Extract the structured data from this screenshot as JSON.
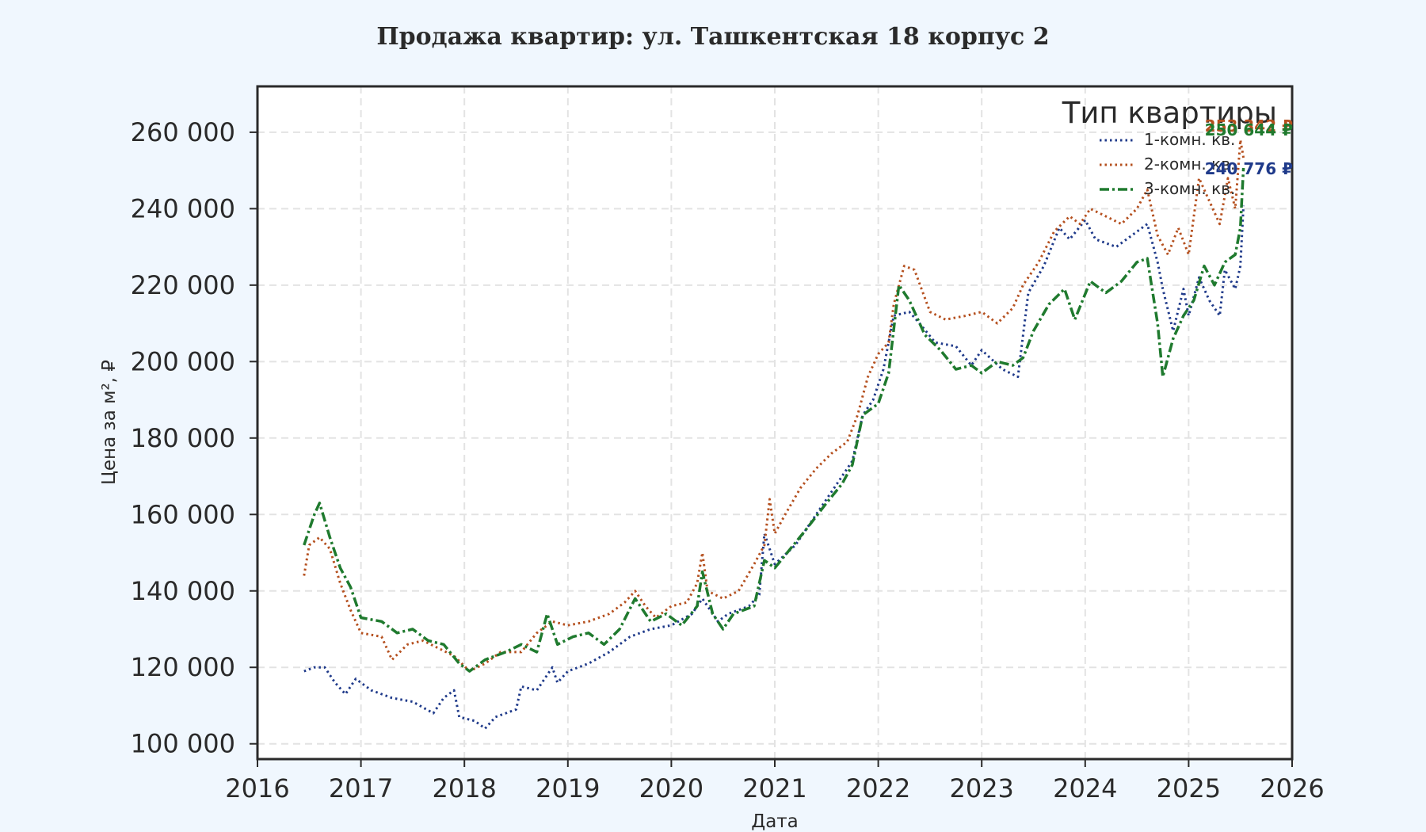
{
  "chart_data": {
    "type": "line",
    "title": "Продажа квартир: ул. Ташкентская 18 корпус 2",
    "xlabel": "Дата",
    "ylabel": "Цена за м², ₽",
    "xlim": [
      2016,
      2026
    ],
    "ylim": [
      96000,
      272000
    ],
    "x_ticks": [
      2016,
      2017,
      2018,
      2019,
      2020,
      2021,
      2022,
      2023,
      2024,
      2025,
      2026
    ],
    "y_ticks": [
      100000,
      120000,
      140000,
      160000,
      180000,
      200000,
      220000,
      240000,
      260000
    ],
    "y_tick_labels": [
      "100 000",
      "120 000",
      "140 000",
      "160 000",
      "180 000",
      "200 000",
      "220 000",
      "240 000",
      "260 000"
    ],
    "grid": true,
    "legend": {
      "title": "Тип квартиры",
      "placement": "top-right"
    },
    "series": [
      {
        "name": "1-комн. кв.",
        "color": "#1f3a8a",
        "linestyle": "dotted",
        "end_label": "240 776 ₽",
        "points": [
          [
            2016.45,
            119000
          ],
          [
            2016.55,
            120000
          ],
          [
            2016.65,
            120000
          ],
          [
            2016.75,
            116000
          ],
          [
            2016.85,
            113000
          ],
          [
            2016.95,
            117000
          ],
          [
            2017.1,
            114000
          ],
          [
            2017.3,
            112000
          ],
          [
            2017.5,
            111000
          ],
          [
            2017.7,
            108000
          ],
          [
            2017.8,
            112000
          ],
          [
            2017.9,
            114000
          ],
          [
            2017.95,
            107000
          ],
          [
            2018.1,
            106000
          ],
          [
            2018.2,
            104000
          ],
          [
            2018.3,
            107000
          ],
          [
            2018.4,
            108000
          ],
          [
            2018.5,
            109000
          ],
          [
            2018.55,
            115000
          ],
          [
            2018.7,
            114000
          ],
          [
            2018.85,
            120000
          ],
          [
            2018.9,
            116000
          ],
          [
            2019.0,
            119000
          ],
          [
            2019.2,
            121000
          ],
          [
            2019.4,
            124000
          ],
          [
            2019.6,
            128000
          ],
          [
            2019.8,
            130000
          ],
          [
            2020.0,
            131000
          ],
          [
            2020.2,
            134000
          ],
          [
            2020.3,
            138000
          ],
          [
            2020.45,
            132000
          ],
          [
            2020.55,
            134000
          ],
          [
            2020.75,
            136000
          ],
          [
            2020.85,
            139000
          ],
          [
            2020.9,
            155000
          ],
          [
            2021.0,
            147000
          ],
          [
            2021.2,
            152000
          ],
          [
            2021.4,
            160000
          ],
          [
            2021.6,
            168000
          ],
          [
            2021.75,
            174000
          ],
          [
            2021.85,
            186000
          ],
          [
            2021.95,
            190000
          ],
          [
            2022.05,
            198000
          ],
          [
            2022.15,
            212000
          ],
          [
            2022.3,
            213000
          ],
          [
            2022.4,
            210000
          ],
          [
            2022.55,
            205000
          ],
          [
            2022.75,
            204000
          ],
          [
            2022.9,
            199000
          ],
          [
            2023.0,
            203000
          ],
          [
            2023.2,
            198000
          ],
          [
            2023.35,
            196000
          ],
          [
            2023.45,
            218000
          ],
          [
            2023.6,
            225000
          ],
          [
            2023.75,
            235000
          ],
          [
            2023.85,
            232000
          ],
          [
            2024.0,
            237000
          ],
          [
            2024.1,
            232000
          ],
          [
            2024.3,
            230000
          ],
          [
            2024.45,
            233000
          ],
          [
            2024.6,
            236000
          ],
          [
            2024.7,
            226000
          ],
          [
            2024.75,
            219000
          ],
          [
            2024.85,
            208000
          ],
          [
            2024.95,
            219000
          ],
          [
            2025.0,
            212000
          ],
          [
            2025.1,
            222000
          ],
          [
            2025.2,
            216000
          ],
          [
            2025.3,
            212000
          ],
          [
            2025.35,
            224000
          ],
          [
            2025.45,
            219000
          ],
          [
            2025.5,
            225000
          ],
          [
            2025.53,
            240776
          ]
        ]
      },
      {
        "name": "2-комн. кв.",
        "color": "#b5501f",
        "linestyle": "dotted",
        "end_label": "253 342 ₽",
        "points": [
          [
            2016.45,
            144000
          ],
          [
            2016.5,
            152000
          ],
          [
            2016.6,
            154000
          ],
          [
            2016.7,
            151000
          ],
          [
            2016.8,
            142000
          ],
          [
            2016.9,
            135000
          ],
          [
            2017.0,
            129000
          ],
          [
            2017.2,
            128000
          ],
          [
            2017.3,
            122000
          ],
          [
            2017.45,
            126000
          ],
          [
            2017.6,
            127000
          ],
          [
            2017.75,
            125000
          ],
          [
            2017.9,
            123000
          ],
          [
            2018.05,
            119000
          ],
          [
            2018.2,
            121000
          ],
          [
            2018.35,
            124000
          ],
          [
            2018.55,
            124000
          ],
          [
            2018.7,
            129000
          ],
          [
            2018.85,
            132000
          ],
          [
            2019.0,
            131000
          ],
          [
            2019.2,
            132000
          ],
          [
            2019.4,
            134000
          ],
          [
            2019.55,
            137000
          ],
          [
            2019.65,
            140000
          ],
          [
            2019.75,
            136000
          ],
          [
            2019.85,
            133000
          ],
          [
            2020.0,
            136000
          ],
          [
            2020.15,
            137000
          ],
          [
            2020.25,
            142000
          ],
          [
            2020.3,
            150000
          ],
          [
            2020.35,
            140000
          ],
          [
            2020.5,
            138000
          ],
          [
            2020.65,
            140000
          ],
          [
            2020.8,
            147000
          ],
          [
            2020.9,
            152000
          ],
          [
            2020.95,
            164000
          ],
          [
            2021.0,
            155000
          ],
          [
            2021.1,
            160000
          ],
          [
            2021.25,
            167000
          ],
          [
            2021.4,
            172000
          ],
          [
            2021.55,
            176000
          ],
          [
            2021.7,
            179000
          ],
          [
            2021.8,
            186000
          ],
          [
            2021.9,
            196000
          ],
          [
            2022.0,
            202000
          ],
          [
            2022.1,
            205000
          ],
          [
            2022.15,
            215000
          ],
          [
            2022.25,
            225000
          ],
          [
            2022.35,
            224000
          ],
          [
            2022.5,
            213000
          ],
          [
            2022.65,
            211000
          ],
          [
            2022.85,
            212000
          ],
          [
            2023.0,
            213000
          ],
          [
            2023.15,
            210000
          ],
          [
            2023.3,
            214000
          ],
          [
            2023.4,
            220000
          ],
          [
            2023.55,
            226000
          ],
          [
            2023.7,
            234000
          ],
          [
            2023.85,
            238000
          ],
          [
            2023.95,
            236000
          ],
          [
            2024.05,
            240000
          ],
          [
            2024.2,
            238000
          ],
          [
            2024.35,
            236000
          ],
          [
            2024.5,
            240000
          ],
          [
            2024.6,
            245000
          ],
          [
            2024.7,
            233000
          ],
          [
            2024.8,
            228000
          ],
          [
            2024.9,
            235000
          ],
          [
            2025.0,
            228000
          ],
          [
            2025.1,
            248000
          ],
          [
            2025.2,
            242000
          ],
          [
            2025.3,
            236000
          ],
          [
            2025.38,
            248000
          ],
          [
            2025.45,
            240000
          ],
          [
            2025.5,
            258000
          ],
          [
            2025.53,
            253342
          ]
        ]
      },
      {
        "name": "3-комн. кв.",
        "color": "#1f7a2e",
        "linestyle": "dashdot",
        "end_label": "250 644 ₽",
        "points": [
          [
            2016.45,
            152000
          ],
          [
            2016.55,
            160000
          ],
          [
            2016.6,
            163000
          ],
          [
            2016.7,
            154000
          ],
          [
            2016.8,
            146000
          ],
          [
            2016.9,
            141000
          ],
          [
            2017.0,
            133000
          ],
          [
            2017.2,
            132000
          ],
          [
            2017.35,
            129000
          ],
          [
            2017.5,
            130000
          ],
          [
            2017.65,
            127000
          ],
          [
            2017.8,
            126000
          ],
          [
            2017.95,
            121000
          ],
          [
            2018.05,
            119000
          ],
          [
            2018.2,
            122000
          ],
          [
            2018.4,
            124000
          ],
          [
            2018.55,
            126000
          ],
          [
            2018.7,
            124000
          ],
          [
            2018.8,
            134000
          ],
          [
            2018.9,
            126000
          ],
          [
            2019.05,
            128000
          ],
          [
            2019.2,
            129000
          ],
          [
            2019.35,
            126000
          ],
          [
            2019.5,
            130000
          ],
          [
            2019.65,
            138000
          ],
          [
            2019.8,
            132000
          ],
          [
            2019.95,
            134000
          ],
          [
            2020.1,
            131000
          ],
          [
            2020.25,
            136000
          ],
          [
            2020.3,
            145000
          ],
          [
            2020.4,
            134000
          ],
          [
            2020.5,
            130000
          ],
          [
            2020.6,
            134000
          ],
          [
            2020.8,
            136000
          ],
          [
            2020.9,
            148000
          ],
          [
            2021.0,
            146000
          ],
          [
            2021.15,
            151000
          ],
          [
            2021.3,
            156000
          ],
          [
            2021.5,
            163000
          ],
          [
            2021.65,
            168000
          ],
          [
            2021.75,
            173000
          ],
          [
            2021.85,
            186000
          ],
          [
            2022.0,
            189000
          ],
          [
            2022.1,
            197000
          ],
          [
            2022.2,
            220000
          ],
          [
            2022.3,
            216000
          ],
          [
            2022.45,
            207000
          ],
          [
            2022.6,
            203000
          ],
          [
            2022.75,
            198000
          ],
          [
            2022.9,
            199000
          ],
          [
            2023.0,
            197000
          ],
          [
            2023.15,
            200000
          ],
          [
            2023.3,
            199000
          ],
          [
            2023.4,
            201000
          ],
          [
            2023.5,
            208000
          ],
          [
            2023.65,
            215000
          ],
          [
            2023.8,
            219000
          ],
          [
            2023.9,
            211000
          ],
          [
            2024.05,
            221000
          ],
          [
            2024.2,
            218000
          ],
          [
            2024.35,
            221000
          ],
          [
            2024.5,
            226000
          ],
          [
            2024.6,
            227000
          ],
          [
            2024.7,
            210000
          ],
          [
            2024.75,
            196000
          ],
          [
            2024.85,
            206000
          ],
          [
            2024.95,
            212000
          ],
          [
            2025.05,
            216000
          ],
          [
            2025.15,
            225000
          ],
          [
            2025.25,
            220000
          ],
          [
            2025.35,
            226000
          ],
          [
            2025.45,
            228000
          ],
          [
            2025.5,
            235000
          ],
          [
            2025.53,
            250644
          ]
        ]
      }
    ]
  }
}
